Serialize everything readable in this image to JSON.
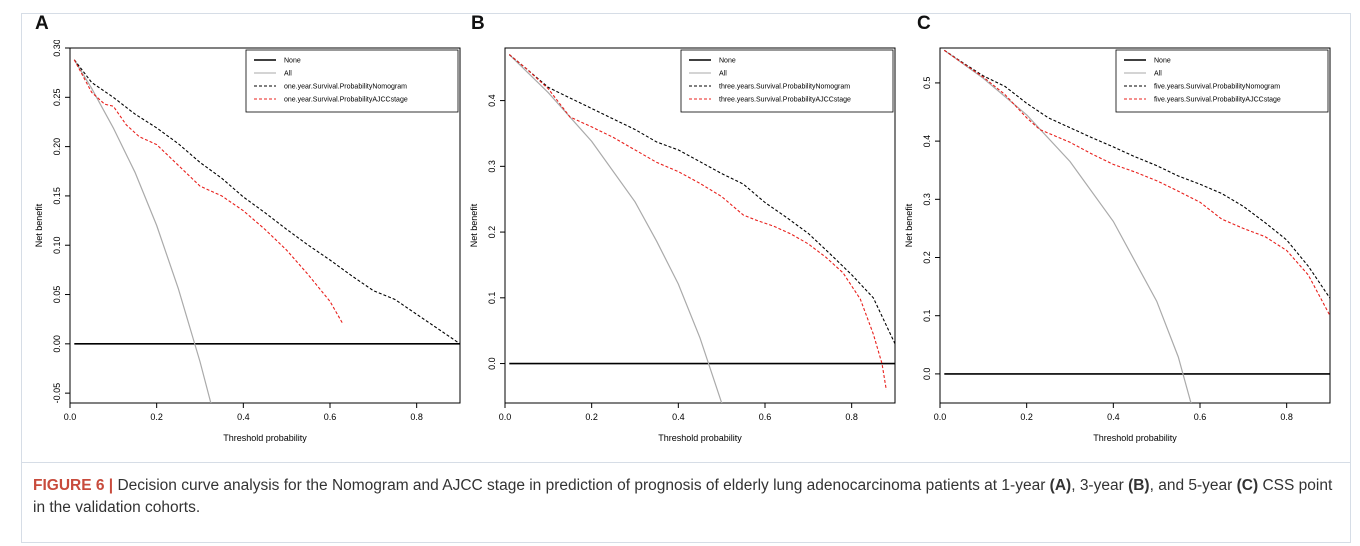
{
  "colors": {
    "none": "#000000",
    "all": "#aaaaaa",
    "nomogram": "#000000",
    "ajcc": "#e8201c",
    "caption_label": "#c84b3c"
  },
  "caption": {
    "figure_label": "FIGURE 6 |",
    "text_1": " Decision curve analysis for the Nomogram and AJCC stage in prediction of prognosis of elderly lung adenocarcinoma patients at 1-year ",
    "bold_a": "(A)",
    "text_2": ", 3-year ",
    "bold_b": "(B)",
    "text_3": ", and 5-year ",
    "bold_c": "(C)",
    "text_4": " CSS point in the validation cohorts."
  },
  "chart_data": [
    {
      "panel": "A",
      "type": "line",
      "xlabel": "Threshold probability",
      "ylabel": "Net benefit",
      "xlim": [
        0,
        0.9
      ],
      "ylim": [
        -0.06,
        0.3
      ],
      "xticks": [
        "0.0",
        "0.2",
        "0.4",
        "0.6",
        "0.8"
      ],
      "xtick_values": [
        0,
        0.2,
        0.4,
        0.6,
        0.8
      ],
      "yticks": [
        "-0.05",
        "0.00",
        "0.05",
        "0.10",
        "0.15",
        "0.20",
        "0.25",
        "0.30"
      ],
      "ytick_values": [
        -0.05,
        0,
        0.05,
        0.1,
        0.15,
        0.2,
        0.25,
        0.3
      ],
      "legend_position": "top-right",
      "series": [
        {
          "name": "None",
          "style": "solid",
          "color": "#000000",
          "x": [
            0.01,
            0.9
          ],
          "y": [
            0,
            0
          ]
        },
        {
          "name": "All",
          "style": "solid",
          "color": "#aaaaaa",
          "x": [
            0.01,
            0.05,
            0.1,
            0.15,
            0.2,
            0.25,
            0.3,
            0.34
          ],
          "y": [
            0.288,
            0.259,
            0.219,
            0.174,
            0.12,
            0.056,
            -0.018,
            -0.085
          ]
        },
        {
          "name": "one.year.Survival.ProbabilityNomogram",
          "style": "dashed",
          "color": "#000000",
          "x": [
            0.01,
            0.05,
            0.1,
            0.15,
            0.2,
            0.25,
            0.3,
            0.35,
            0.4,
            0.45,
            0.5,
            0.55,
            0.6,
            0.65,
            0.7,
            0.75,
            0.8,
            0.85,
            0.9
          ],
          "y": [
            0.288,
            0.265,
            0.25,
            0.233,
            0.219,
            0.203,
            0.184,
            0.168,
            0.149,
            0.133,
            0.116,
            0.1,
            0.085,
            0.069,
            0.054,
            0.045,
            0.03,
            0.015,
            0.0
          ]
        },
        {
          "name": "one.year.Survival.ProbabilityAJCCstage",
          "style": "dashed",
          "color": "#e8201c",
          "x": [
            0.01,
            0.05,
            0.08,
            0.1,
            0.13,
            0.16,
            0.2,
            0.25,
            0.3,
            0.35,
            0.4,
            0.45,
            0.5,
            0.55,
            0.6,
            0.63
          ],
          "y": [
            0.288,
            0.255,
            0.243,
            0.241,
            0.222,
            0.21,
            0.202,
            0.181,
            0.16,
            0.15,
            0.135,
            0.116,
            0.095,
            0.07,
            0.043,
            0.02
          ]
        }
      ]
    },
    {
      "panel": "B",
      "type": "line",
      "xlabel": "Threshold probability",
      "ylabel": "Net benefit",
      "xlim": [
        0,
        0.9
      ],
      "ylim": [
        -0.06,
        0.48
      ],
      "xticks": [
        "0.0",
        "0.2",
        "0.4",
        "0.6",
        "0.8"
      ],
      "xtick_values": [
        0,
        0.2,
        0.4,
        0.6,
        0.8
      ],
      "yticks": [
        "0.0",
        "0.1",
        "0.2",
        "0.3",
        "0.4"
      ],
      "ytick_values": [
        0,
        0.1,
        0.2,
        0.3,
        0.4
      ],
      "legend_position": "top-right",
      "series": [
        {
          "name": "None",
          "style": "solid",
          "color": "#000000",
          "x": [
            0.01,
            0.9
          ],
          "y": [
            0,
            0
          ]
        },
        {
          "name": "All",
          "style": "solid",
          "color": "#aaaaaa",
          "x": [
            0.01,
            0.1,
            0.2,
            0.3,
            0.35,
            0.4,
            0.45,
            0.5,
            0.51
          ],
          "y": [
            0.47,
            0.412,
            0.338,
            0.246,
            0.186,
            0.121,
            0.039,
            -0.06,
            -0.09
          ]
        },
        {
          "name": "three.years.Survival.ProbabilityNomogram",
          "style": "dashed",
          "color": "#000000",
          "x": [
            0.01,
            0.05,
            0.1,
            0.15,
            0.2,
            0.25,
            0.3,
            0.35,
            0.4,
            0.45,
            0.5,
            0.55,
            0.6,
            0.65,
            0.7,
            0.75,
            0.8,
            0.85,
            0.9
          ],
          "y": [
            0.47,
            0.448,
            0.42,
            0.404,
            0.388,
            0.372,
            0.356,
            0.337,
            0.325,
            0.307,
            0.289,
            0.273,
            0.245,
            0.222,
            0.198,
            0.167,
            0.135,
            0.1,
            0.03
          ]
        },
        {
          "name": "three.years.Survival.ProbabilityAJCCstage",
          "style": "dashed",
          "color": "#e8201c",
          "x": [
            0.01,
            0.05,
            0.1,
            0.15,
            0.2,
            0.25,
            0.3,
            0.35,
            0.4,
            0.45,
            0.5,
            0.55,
            0.58,
            0.62,
            0.66,
            0.7,
            0.74,
            0.78,
            0.82,
            0.85,
            0.87,
            0.88
          ],
          "y": [
            0.47,
            0.448,
            0.418,
            0.375,
            0.36,
            0.344,
            0.325,
            0.306,
            0.292,
            0.274,
            0.254,
            0.226,
            0.218,
            0.209,
            0.197,
            0.182,
            0.162,
            0.138,
            0.098,
            0.045,
            0.0,
            -0.04
          ]
        }
      ]
    },
    {
      "panel": "C",
      "type": "line",
      "xlabel": "Threshold probability",
      "ylabel": "Net benefit",
      "xlim": [
        0,
        0.9
      ],
      "ylim": [
        -0.05,
        0.56
      ],
      "xticks": [
        "0.0",
        "0.2",
        "0.4",
        "0.6",
        "0.8"
      ],
      "xtick_values": [
        0,
        0.2,
        0.4,
        0.6,
        0.8
      ],
      "yticks": [
        "0.0",
        "0.1",
        "0.2",
        "0.3",
        "0.4",
        "0.5"
      ],
      "ytick_values": [
        0,
        0.1,
        0.2,
        0.3,
        0.4,
        0.5
      ],
      "legend_position": "top-right",
      "series": [
        {
          "name": "None",
          "style": "solid",
          "color": "#000000",
          "x": [
            0.01,
            0.9
          ],
          "y": [
            0,
            0
          ]
        },
        {
          "name": "All",
          "style": "solid",
          "color": "#aaaaaa",
          "x": [
            0.01,
            0.1,
            0.2,
            0.3,
            0.4,
            0.5,
            0.55,
            0.58
          ],
          "y": [
            0.556,
            0.508,
            0.445,
            0.365,
            0.262,
            0.125,
            0.029,
            -0.052
          ]
        },
        {
          "name": "five.years.Survival.ProbabilityNomogram",
          "style": "dashed",
          "color": "#000000",
          "x": [
            0.01,
            0.05,
            0.1,
            0.15,
            0.2,
            0.25,
            0.3,
            0.35,
            0.4,
            0.45,
            0.5,
            0.55,
            0.6,
            0.65,
            0.7,
            0.75,
            0.8,
            0.85,
            0.9
          ],
          "y": [
            0.556,
            0.536,
            0.512,
            0.494,
            0.465,
            0.44,
            0.423,
            0.406,
            0.39,
            0.373,
            0.358,
            0.34,
            0.326,
            0.31,
            0.288,
            0.26,
            0.23,
            0.185,
            0.13
          ]
        },
        {
          "name": "five.years.Survival.ProbabilityAJCCstage",
          "style": "dashed",
          "color": "#e8201c",
          "x": [
            0.01,
            0.05,
            0.1,
            0.15,
            0.2,
            0.23,
            0.3,
            0.35,
            0.4,
            0.45,
            0.5,
            0.55,
            0.6,
            0.65,
            0.7,
            0.75,
            0.8,
            0.85,
            0.9
          ],
          "y": [
            0.556,
            0.535,
            0.51,
            0.48,
            0.44,
            0.42,
            0.398,
            0.378,
            0.36,
            0.347,
            0.332,
            0.314,
            0.295,
            0.266,
            0.25,
            0.236,
            0.212,
            0.17,
            0.1
          ]
        }
      ]
    }
  ]
}
